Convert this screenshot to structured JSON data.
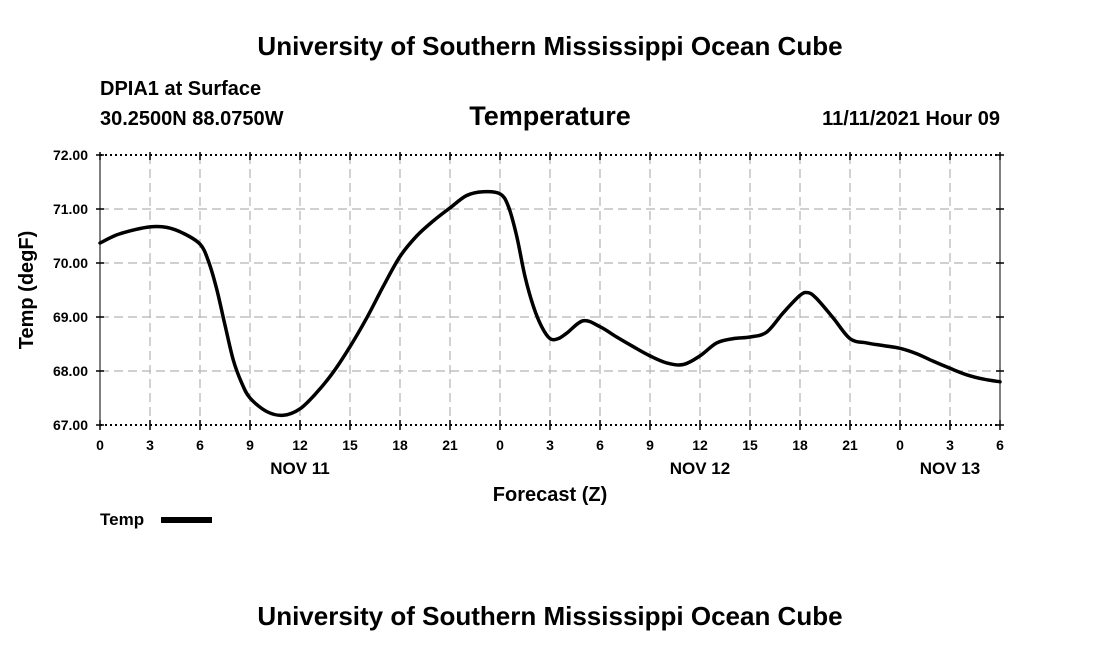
{
  "header": {
    "top_title": "University of Southern Mississippi Ocean Cube",
    "bottom_title": "University of Southern Mississippi Ocean Cube",
    "station": "DPIA1 at Surface",
    "coords": "30.2500N  88.0750W",
    "datetime": "11/11/2021 Hour 09"
  },
  "chart_data": {
    "type": "line",
    "title": "Temperature",
    "xlabel": "Forecast (Z)",
    "ylabel": "Temp (degF)",
    "ylim": [
      67.0,
      72.0
    ],
    "yticks": [
      "67.00",
      "68.00",
      "69.00",
      "70.00",
      "71.00",
      "72.00"
    ],
    "xlim": [
      0,
      54
    ],
    "xtick_labels": [
      "0",
      "3",
      "6",
      "9",
      "12",
      "15",
      "18",
      "21",
      "0",
      "3",
      "6",
      "9",
      "12",
      "15",
      "18",
      "21",
      "0",
      "3",
      "6"
    ],
    "date_labels": [
      {
        "hour": 12,
        "label": "NOV 11"
      },
      {
        "hour": 36,
        "label": "NOV 12"
      },
      {
        "hour": 51,
        "label": "NOV 13"
      }
    ],
    "grid": true,
    "legend": "bottom-left",
    "series": [
      {
        "name": "Temp",
        "x": [
          0,
          1,
          2,
          3,
          4,
          5,
          6,
          6.5,
          7,
          7.5,
          8,
          8.5,
          9,
          10,
          11,
          12,
          13,
          14,
          15,
          16,
          17,
          18,
          19,
          20,
          21,
          22,
          23,
          24,
          24.5,
          25,
          25.5,
          26,
          26.5,
          27,
          27.5,
          28,
          29,
          30,
          31,
          32,
          33,
          34,
          35,
          36,
          37,
          38,
          39,
          40,
          41,
          42,
          42.5,
          43,
          44,
          45,
          46,
          47,
          48,
          49,
          50,
          51,
          52,
          53,
          54
        ],
        "values": [
          70.37,
          70.52,
          70.61,
          70.67,
          70.66,
          70.55,
          70.35,
          70.04,
          69.52,
          68.85,
          68.2,
          67.78,
          67.5,
          67.25,
          67.18,
          67.3,
          67.6,
          67.98,
          68.45,
          68.98,
          69.57,
          70.12,
          70.5,
          70.78,
          71.02,
          71.25,
          71.32,
          71.28,
          71.05,
          70.5,
          69.75,
          69.2,
          68.82,
          68.6,
          68.6,
          68.7,
          68.93,
          68.82,
          68.63,
          68.45,
          68.28,
          68.15,
          68.12,
          68.28,
          68.52,
          68.6,
          68.63,
          68.72,
          69.08,
          69.4,
          69.45,
          69.34,
          68.98,
          68.6,
          68.52,
          68.47,
          68.42,
          68.32,
          68.18,
          68.05,
          67.93,
          67.85,
          67.8
        ]
      }
    ]
  }
}
